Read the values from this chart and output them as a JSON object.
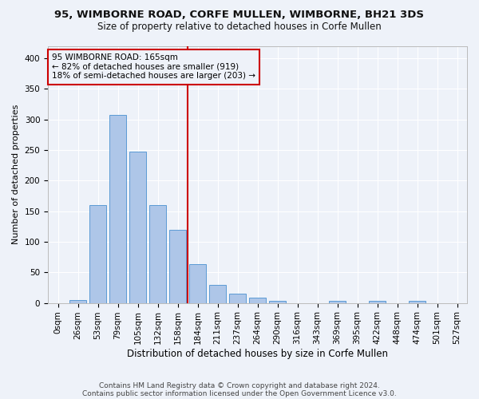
{
  "title1": "95, WIMBORNE ROAD, CORFE MULLEN, WIMBORNE, BH21 3DS",
  "title2": "Size of property relative to detached houses in Corfe Mullen",
  "xlabel": "Distribution of detached houses by size in Corfe Mullen",
  "ylabel": "Number of detached properties",
  "footnote1": "Contains HM Land Registry data © Crown copyright and database right 2024.",
  "footnote2": "Contains public sector information licensed under the Open Government Licence v3.0.",
  "bar_labels": [
    "0sqm",
    "26sqm",
    "53sqm",
    "79sqm",
    "105sqm",
    "132sqm",
    "158sqm",
    "184sqm",
    "211sqm",
    "237sqm",
    "264sqm",
    "290sqm",
    "316sqm",
    "343sqm",
    "369sqm",
    "395sqm",
    "422sqm",
    "448sqm",
    "474sqm",
    "501sqm",
    "527sqm"
  ],
  "bar_values": [
    0,
    5,
    160,
    307,
    247,
    160,
    120,
    63,
    30,
    15,
    8,
    4,
    0,
    0,
    4,
    0,
    4,
    0,
    4,
    0,
    0
  ],
  "bar_color": "#aec6e8",
  "bar_edge_color": "#5b9bd5",
  "vline_x_index": 6.5,
  "annotation_title": "95 WIMBORNE ROAD: 165sqm",
  "annotation_line1": "← 82% of detached houses are smaller (919)",
  "annotation_line2": "18% of semi-detached houses are larger (203) →",
  "ylim": [
    0,
    420
  ],
  "yticks": [
    0,
    50,
    100,
    150,
    200,
    250,
    300,
    350,
    400
  ],
  "background_color": "#eef2f9",
  "grid_color": "#ffffff",
  "vline_color": "#cc0000",
  "annotation_box_color": "#cc0000",
  "title_fontsize": 9.5,
  "subtitle_fontsize": 8.5,
  "ylabel_fontsize": 8,
  "xlabel_fontsize": 8.5,
  "tick_fontsize": 7.5,
  "annotation_fontsize": 7.5,
  "footnote_fontsize": 6.5
}
